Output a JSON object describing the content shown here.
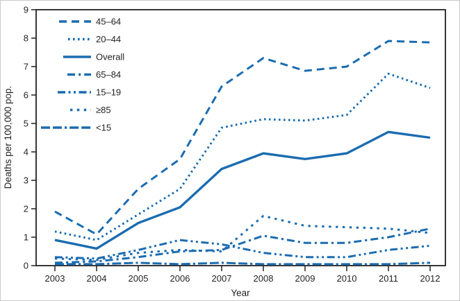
{
  "figure": {
    "xlabel": "Year",
    "ylabel": "Deaths per 100,000 pop."
  },
  "colors": {
    "line_blue": "#1B6CB0",
    "text": "#231F20",
    "frame": "#231F20",
    "background": "#FFFFFF"
  },
  "chart_data": {
    "type": "line",
    "x": [
      2003,
      2004,
      2005,
      2006,
      2007,
      2008,
      2009,
      2010,
      2011,
      2012
    ],
    "xlabel": "Year",
    "ylabel": "Deaths per 100,000 pop.",
    "ylim": [
      0,
      9
    ],
    "ytick_step": 1,
    "yticks": [
      0,
      1,
      2,
      3,
      4,
      5,
      6,
      7,
      8,
      9
    ],
    "grid": false,
    "legend_position": "top-left-inside",
    "legend_order": [
      "45–64",
      "20–44",
      "Overall",
      "65–84",
      "15–19",
      "≥85",
      "<15"
    ],
    "series": [
      {
        "name": "45–64",
        "style": "dashed",
        "values": [
          1.9,
          1.1,
          2.7,
          3.75,
          6.3,
          7.3,
          6.85,
          7.0,
          7.9,
          7.85
        ]
      },
      {
        "name": "20–44",
        "style": "dotted",
        "values": [
          1.2,
          0.9,
          1.8,
          2.7,
          4.85,
          5.15,
          5.1,
          5.3,
          6.75,
          6.25
        ]
      },
      {
        "name": "Overall",
        "style": "solid",
        "values": [
          0.9,
          0.6,
          1.5,
          2.05,
          3.4,
          3.95,
          3.75,
          3.95,
          4.7,
          4.5
        ]
      },
      {
        "name": "65–84",
        "style": "dash-dot",
        "values": [
          0.1,
          0.15,
          0.3,
          0.5,
          0.55,
          1.05,
          0.8,
          0.8,
          1.0,
          1.3
        ]
      },
      {
        "name": "15–19",
        "style": "dash-dot-dot",
        "values": [
          0.3,
          0.25,
          0.55,
          0.9,
          0.75,
          0.45,
          0.3,
          0.3,
          0.55,
          0.7
        ]
      },
      {
        "name": "≥85",
        "style": "short-dash",
        "values": [
          0.25,
          0.2,
          0.45,
          0.55,
          0.5,
          1.75,
          1.4,
          1.35,
          1.3,
          1.15
        ]
      },
      {
        "name": "<15",
        "style": "long-dash-dash-dot",
        "values": [
          0.05,
          0.05,
          0.1,
          0.05,
          0.1,
          0.05,
          0.05,
          0.05,
          0.05,
          0.1
        ]
      }
    ]
  }
}
